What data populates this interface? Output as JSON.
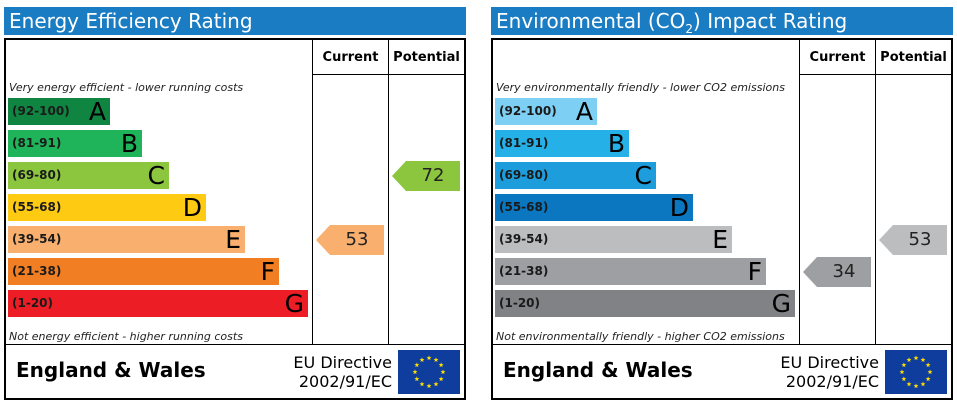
{
  "chart_data": [
    {
      "type": "bar",
      "title": "Energy Efficiency Rating",
      "columns": {
        "current": "Current",
        "potential": "Potential"
      },
      "top_note": "Very energy efficient - lower running costs",
      "bottom_note": "Not energy efficient - higher running costs",
      "bands": [
        {
          "range": "(92-100)",
          "letter": "A",
          "color": "#0f8541",
          "lower": 92
        },
        {
          "range": "(81-91)",
          "letter": "B",
          "color": "#1fb45a",
          "lower": 81
        },
        {
          "range": "(69-80)",
          "letter": "C",
          "color": "#8cc63f",
          "lower": 69
        },
        {
          "range": "(55-68)",
          "letter": "D",
          "color": "#fecb12",
          "lower": 55
        },
        {
          "range": "(39-54)",
          "letter": "E",
          "color": "#f9b06e",
          "lower": 39
        },
        {
          "range": "(21-38)",
          "letter": "F",
          "color": "#f17e22",
          "lower": 21
        },
        {
          "range": "(1-20)",
          "letter": "G",
          "color": "#ec1d24",
          "lower": 1
        }
      ],
      "current": {
        "value": 53,
        "label": "53",
        "color": "#f9b06e"
      },
      "potential": {
        "value": 72,
        "label": "72",
        "color": "#8cc63f"
      },
      "footer": {
        "region": "England & Wales",
        "directive_line1": "EU Directive",
        "directive_line2": "2002/91/EC"
      }
    },
    {
      "type": "bar",
      "title": "Environmental (CO2) Impact Rating",
      "title_parts": {
        "before": "Environmental (CO",
        "sub": "2",
        "after": ") Impact Rating"
      },
      "columns": {
        "current": "Current",
        "potential": "Potential"
      },
      "top_note": "Very environmentally friendly - lower CO2 emissions",
      "bottom_note": "Not environmentally friendly - higher CO2 emissions",
      "bands": [
        {
          "range": "(92-100)",
          "letter": "A",
          "color": "#7ecff4",
          "lower": 92
        },
        {
          "range": "(81-91)",
          "letter": "B",
          "color": "#25b0e8",
          "lower": 81
        },
        {
          "range": "(69-80)",
          "letter": "C",
          "color": "#1d9ddc",
          "lower": 69
        },
        {
          "range": "(55-68)",
          "letter": "D",
          "color": "#0b77c0",
          "lower": 55
        },
        {
          "range": "(39-54)",
          "letter": "E",
          "color": "#bbbdbf",
          "lower": 39
        },
        {
          "range": "(21-38)",
          "letter": "F",
          "color": "#9d9fa2",
          "lower": 21
        },
        {
          "range": "(1-20)",
          "letter": "G",
          "color": "#808285",
          "lower": 1
        }
      ],
      "current": {
        "value": 34,
        "label": "34",
        "color": "#9d9fa2"
      },
      "potential": {
        "value": 53,
        "label": "53",
        "color": "#bbbdbf"
      },
      "footer": {
        "region": "England & Wales",
        "directive_line1": "EU Directive",
        "directive_line2": "2002/91/EC"
      }
    }
  ]
}
